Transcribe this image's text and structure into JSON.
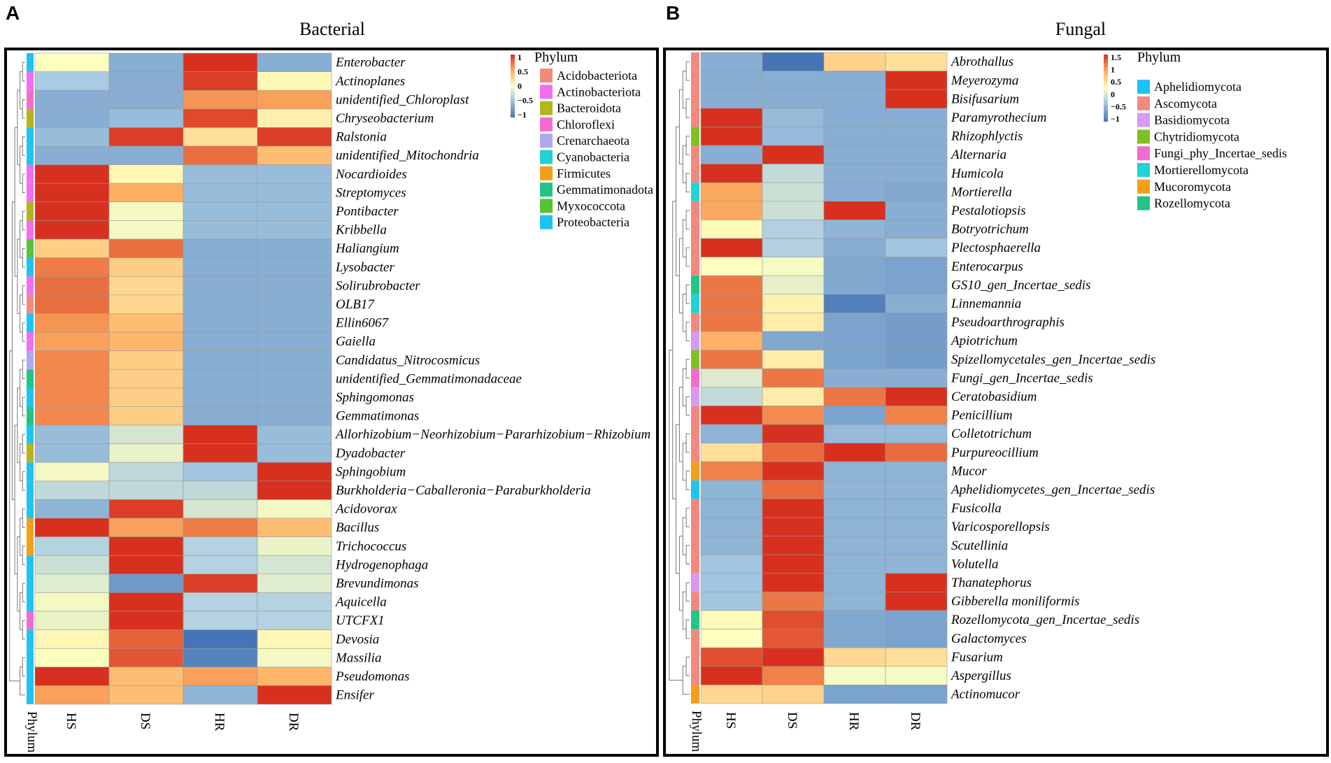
{
  "colors": {
    "heat_low": "#4575b4",
    "heat_lowmid": "#a9cbe3",
    "heat_mid": "#ffffbf",
    "heat_highmid": "#fdae61",
    "heat_high": "#d7301f",
    "frame": "#000000"
  },
  "chart_data": [
    {
      "type": "heatmap",
      "panel": "A",
      "title": "Bacterial",
      "columns": [
        "HS",
        "DS",
        "HR",
        "DR"
      ],
      "phylum_axis_label": "Phylum",
      "scale": {
        "ticks": [
          "1",
          "0.5",
          "0",
          "−0.5",
          "−1"
        ],
        "min": -1,
        "max": 1
      },
      "legend": {
        "title": "Phylum",
        "entries": [
          {
            "name": "Acidobacteriota",
            "color": "#f08a7e"
          },
          {
            "name": "Actinobacteriota",
            "color": "#f26ef0"
          },
          {
            "name": "Bacteroidota",
            "color": "#b4b41c"
          },
          {
            "name": "Chloroflexi",
            "color": "#f26cd0"
          },
          {
            "name": "Crenarchaeota",
            "color": "#b2a6ee"
          },
          {
            "name": "Cyanobacteria",
            "color": "#22d2d6"
          },
          {
            "name": "Firmicutes",
            "color": "#f2a01c"
          },
          {
            "name": "Gemmatimonadota",
            "color": "#22c489"
          },
          {
            "name": "Myxococcota",
            "color": "#58c234"
          },
          {
            "name": "Proteobacteria",
            "color": "#1ec3f2"
          }
        ]
      },
      "rows": [
        {
          "name": "Enterobacter",
          "phylum": "Proteobacteria",
          "values": [
            0.0,
            -0.6,
            1.0,
            -0.6
          ]
        },
        {
          "name": "Actinoplanes",
          "phylum": "Actinobacteriota",
          "values": [
            -0.4,
            -0.6,
            0.95,
            0.05
          ]
        },
        {
          "name": "unidentified_Chloroplast",
          "phylum": "Chloroflexi",
          "values": [
            -0.6,
            -0.6,
            0.6,
            0.55
          ]
        },
        {
          "name": "Chryseobacterium",
          "phylum": "Bacteroidota",
          "values": [
            -0.6,
            -0.5,
            0.9,
            0.1
          ]
        },
        {
          "name": "Ralstonia",
          "phylum": "Proteobacteria",
          "values": [
            -0.5,
            0.95,
            0.2,
            0.95
          ]
        },
        {
          "name": "unidentified_Mitochondria",
          "phylum": "Proteobacteria",
          "values": [
            -0.6,
            -0.6,
            0.75,
            0.4
          ]
        },
        {
          "name": "Nocardioides",
          "phylum": "Actinobacteriota",
          "values": [
            1.0,
            0.05,
            -0.5,
            -0.5
          ]
        },
        {
          "name": "Streptomyces",
          "phylum": "Actinobacteriota",
          "values": [
            1.0,
            0.5,
            -0.5,
            -0.5
          ]
        },
        {
          "name": "Pontibacter",
          "phylum": "Bacteroidota",
          "values": [
            1.0,
            -0.05,
            -0.5,
            -0.5
          ]
        },
        {
          "name": "Kribbella",
          "phylum": "Actinobacteriota",
          "values": [
            1.0,
            -0.05,
            -0.5,
            -0.5
          ]
        },
        {
          "name": "Haliangium",
          "phylum": "Myxococcota",
          "values": [
            0.3,
            0.75,
            -0.6,
            -0.6
          ]
        },
        {
          "name": "Lysobacter",
          "phylum": "Proteobacteria",
          "values": [
            0.7,
            0.3,
            -0.6,
            -0.6
          ]
        },
        {
          "name": "Solirubrobacter",
          "phylum": "Actinobacteriota",
          "values": [
            0.75,
            0.25,
            -0.6,
            -0.6
          ]
        },
        {
          "name": "OLB17",
          "phylum": "Acidobacteriota",
          "values": [
            0.75,
            0.25,
            -0.6,
            -0.6
          ]
        },
        {
          "name": "Ellin6067",
          "phylum": "Proteobacteria",
          "values": [
            0.6,
            0.4,
            -0.6,
            -0.6
          ]
        },
        {
          "name": "Gaiella",
          "phylum": "Actinobacteriota",
          "values": [
            0.55,
            0.45,
            -0.6,
            -0.6
          ]
        },
        {
          "name": "Candidatus_Nitrocosmicus",
          "phylum": "Crenarchaeota",
          "values": [
            0.65,
            0.3,
            -0.6,
            -0.6
          ]
        },
        {
          "name": "unidentified_Gemmatimonadaceae",
          "phylum": "Gemmatimonadota",
          "values": [
            0.65,
            0.3,
            -0.6,
            -0.6
          ]
        },
        {
          "name": "Sphingomonas",
          "phylum": "Proteobacteria",
          "values": [
            0.65,
            0.3,
            -0.6,
            -0.6
          ]
        },
        {
          "name": "Gemmatimonas",
          "phylum": "Gemmatimonadota",
          "values": [
            0.65,
            0.3,
            -0.6,
            -0.6
          ]
        },
        {
          "name": "Allorhizobium−Neorhizobium−Pararhizobium−Rhizobium",
          "phylum": "Proteobacteria",
          "values": [
            -0.5,
            -0.2,
            1.0,
            -0.5
          ]
        },
        {
          "name": "Dyadobacter",
          "phylum": "Bacteroidota",
          "values": [
            -0.5,
            -0.1,
            1.0,
            -0.5
          ]
        },
        {
          "name": "Sphingobium",
          "phylum": "Proteobacteria",
          "values": [
            -0.05,
            -0.3,
            -0.45,
            1.0
          ]
        },
        {
          "name": "Burkholderia−Caballeronia−Paraburkholderia",
          "phylum": "Proteobacteria",
          "values": [
            -0.3,
            -0.3,
            -0.3,
            1.0
          ]
        },
        {
          "name": "Acidovorax",
          "phylum": "Proteobacteria",
          "values": [
            -0.55,
            0.95,
            -0.2,
            -0.05
          ]
        },
        {
          "name": "Bacillus",
          "phylum": "Firmicutes",
          "values": [
            1.0,
            0.55,
            0.7,
            0.4
          ]
        },
        {
          "name": "Trichococcus",
          "phylum": "Firmicutes",
          "values": [
            -0.35,
            1.0,
            -0.35,
            -0.1
          ]
        },
        {
          "name": "Hydrogenophaga",
          "phylum": "Proteobacteria",
          "values": [
            -0.25,
            1.0,
            -0.35,
            -0.2
          ]
        },
        {
          "name": "Brevundimonas",
          "phylum": "Proteobacteria",
          "values": [
            -0.15,
            -0.75,
            0.95,
            -0.15
          ]
        },
        {
          "name": "Aquicella",
          "phylum": "Proteobacteria",
          "values": [
            -0.05,
            1.0,
            -0.35,
            -0.35
          ]
        },
        {
          "name": "UTCFX1",
          "phylum": "Chloroflexi",
          "values": [
            -0.1,
            1.0,
            -0.35,
            -0.35
          ]
        },
        {
          "name": "Devosia",
          "phylum": "Proteobacteria",
          "values": [
            0.05,
            0.8,
            -1.0,
            0.05
          ]
        },
        {
          "name": "Massilia",
          "phylum": "Proteobacteria",
          "values": [
            0.0,
            0.85,
            -0.9,
            -0.05
          ]
        },
        {
          "name": "Pseudomonas",
          "phylum": "Proteobacteria",
          "values": [
            1.0,
            0.4,
            0.55,
            0.45
          ]
        },
        {
          "name": "Ensifer",
          "phylum": "Proteobacteria",
          "values": [
            0.55,
            0.4,
            -0.55,
            1.0
          ]
        }
      ]
    },
    {
      "type": "heatmap",
      "panel": "B",
      "title": "Fungal",
      "columns": [
        "HS",
        "DS",
        "HR",
        "DR"
      ],
      "phylum_axis_label": "Phylum",
      "scale": {
        "ticks": [
          "1.5",
          "1",
          "0.5",
          "0",
          "−0.5",
          "−1"
        ],
        "min": -1,
        "max": 1.5
      },
      "legend": {
        "title": "Phylum",
        "entries": [
          {
            "name": "Aphelidiomycota",
            "color": "#1ec3f2"
          },
          {
            "name": "Ascomycota",
            "color": "#f08a7e"
          },
          {
            "name": "Basidiomycota",
            "color": "#d79af0"
          },
          {
            "name": "Chytridiomycota",
            "color": "#7fc022"
          },
          {
            "name": "Fungi_phy_Incertae_sedis",
            "color": "#f26cd0"
          },
          {
            "name": "Mortierellomycota",
            "color": "#22d2d6"
          },
          {
            "name": "Mucoromycota",
            "color": "#f2a01c"
          },
          {
            "name": "Rozellomycota",
            "color": "#22c489"
          }
        ]
      },
      "rows": [
        {
          "name": "Abrothallus",
          "phylum": "Ascomycota",
          "values": [
            -0.5,
            -1.0,
            0.6,
            0.5
          ]
        },
        {
          "name": "Meyerozyma",
          "phylum": "Ascomycota",
          "values": [
            -0.5,
            -0.5,
            -0.5,
            1.5
          ]
        },
        {
          "name": "Bisifusarium",
          "phylum": "Ascomycota",
          "values": [
            -0.5,
            -0.5,
            -0.5,
            1.5
          ]
        },
        {
          "name": "Paramyrothecium",
          "phylum": "Ascomycota",
          "values": [
            1.5,
            -0.4,
            -0.5,
            -0.5
          ]
        },
        {
          "name": "Rhizophlyctis",
          "phylum": "Chytridiomycota",
          "values": [
            1.5,
            -0.4,
            -0.5,
            -0.5
          ]
        },
        {
          "name": "Alternaria",
          "phylum": "Ascomycota",
          "values": [
            -0.5,
            1.5,
            -0.5,
            -0.5
          ]
        },
        {
          "name": "Humicola",
          "phylum": "Ascomycota",
          "values": [
            1.5,
            -0.1,
            -0.5,
            -0.5
          ]
        },
        {
          "name": "Mortierella",
          "phylum": "Mortierellomycota",
          "values": [
            0.9,
            -0.05,
            -0.5,
            -0.55
          ]
        },
        {
          "name": "Pestalotiopsis",
          "phylum": "Ascomycota",
          "values": [
            0.9,
            -0.05,
            1.5,
            -0.5
          ]
        },
        {
          "name": "Botryotrichum",
          "phylum": "Ascomycota",
          "values": [
            0.3,
            -0.2,
            -0.45,
            -0.5
          ]
        },
        {
          "name": "Plectosphaerella",
          "phylum": "Ascomycota",
          "values": [
            1.5,
            -0.2,
            -0.5,
            -0.3
          ]
        },
        {
          "name": "Enterocarpus",
          "phylum": "Ascomycota",
          "values": [
            0.25,
            0.2,
            -0.55,
            -0.6
          ]
        },
        {
          "name": "GS10_gen_Incertae_sedis",
          "phylum": "Rozellomycota",
          "values": [
            1.15,
            0.1,
            -0.55,
            -0.6
          ]
        },
        {
          "name": "Linnemannia",
          "phylum": "Mortierellomycota",
          "values": [
            1.15,
            0.35,
            -0.9,
            -0.5
          ]
        },
        {
          "name": "Pseudoarthrographis",
          "phylum": "Ascomycota",
          "values": [
            1.15,
            0.4,
            -0.6,
            -0.65
          ]
        },
        {
          "name": "Apiotrichum",
          "phylum": "Basidiomycota",
          "values": [
            0.85,
            -0.55,
            -0.6,
            -0.65
          ]
        },
        {
          "name": "Spizellomycetales_gen_Incertae_sedis",
          "phylum": "Chytridiomycota",
          "values": [
            1.15,
            0.4,
            -0.6,
            -0.65
          ]
        },
        {
          "name": "Fungi_gen_Incertae_sedis",
          "phylum": "Fungi_phy_Incertae_sedis",
          "values": [
            0.05,
            1.15,
            -0.5,
            -0.5
          ]
        },
        {
          "name": "Ceratobasidium",
          "phylum": "Basidiomycota",
          "values": [
            -0.1,
            0.4,
            1.15,
            1.5
          ]
        },
        {
          "name": "Penicillium",
          "phylum": "Ascomycota",
          "values": [
            1.5,
            1.05,
            -0.6,
            1.1
          ]
        },
        {
          "name": "Colletotrichum",
          "phylum": "Ascomycota",
          "values": [
            -0.45,
            1.5,
            -0.4,
            -0.4
          ]
        },
        {
          "name": "Purpureocillium",
          "phylum": "Ascomycota",
          "values": [
            0.5,
            1.2,
            1.5,
            1.2
          ]
        },
        {
          "name": "Mucor",
          "phylum": "Mucoromycota",
          "values": [
            1.1,
            1.5,
            -0.45,
            -0.45
          ]
        },
        {
          "name": "Aphelidiomycetes_gen_Incertae_sedis",
          "phylum": "Aphelidiomycota",
          "values": [
            -0.45,
            1.2,
            -0.45,
            -0.45
          ]
        },
        {
          "name": "Fusicolla",
          "phylum": "Ascomycota",
          "values": [
            -0.45,
            1.5,
            -0.45,
            -0.45
          ]
        },
        {
          "name": "Varicosporellopsis",
          "phylum": "Ascomycota",
          "values": [
            -0.45,
            1.5,
            -0.45,
            -0.45
          ]
        },
        {
          "name": "Scutellinia",
          "phylum": "Ascomycota",
          "values": [
            -0.45,
            1.5,
            -0.45,
            -0.45
          ]
        },
        {
          "name": "Volutella",
          "phylum": "Ascomycota",
          "values": [
            -0.3,
            1.5,
            -0.45,
            -0.45
          ]
        },
        {
          "name": "Thanatephorus",
          "phylum": "Basidiomycota",
          "values": [
            -0.3,
            1.5,
            -0.45,
            1.5
          ]
        },
        {
          "name": "Gibberella moniliformis",
          "phylum": "Ascomycota",
          "values": [
            -0.3,
            1.15,
            -0.45,
            1.5
          ]
        },
        {
          "name": "Rozellomycota_gen_Incertae_sedis",
          "phylum": "Rozellomycota",
          "values": [
            0.3,
            1.35,
            -0.55,
            -0.6
          ]
        },
        {
          "name": "Galactomyces",
          "phylum": "Ascomycota",
          "values": [
            0.25,
            1.3,
            -0.55,
            -0.6
          ]
        },
        {
          "name": "Fusarium",
          "phylum": "Ascomycota",
          "values": [
            1.35,
            1.5,
            0.55,
            0.5
          ]
        },
        {
          "name": "Aspergillus",
          "phylum": "Ascomycota",
          "values": [
            1.5,
            1.1,
            0.2,
            0.2
          ]
        },
        {
          "name": "Actinomucor",
          "phylum": "Mucoromycota",
          "values": [
            0.55,
            0.6,
            -0.6,
            -0.6
          ]
        }
      ]
    }
  ]
}
